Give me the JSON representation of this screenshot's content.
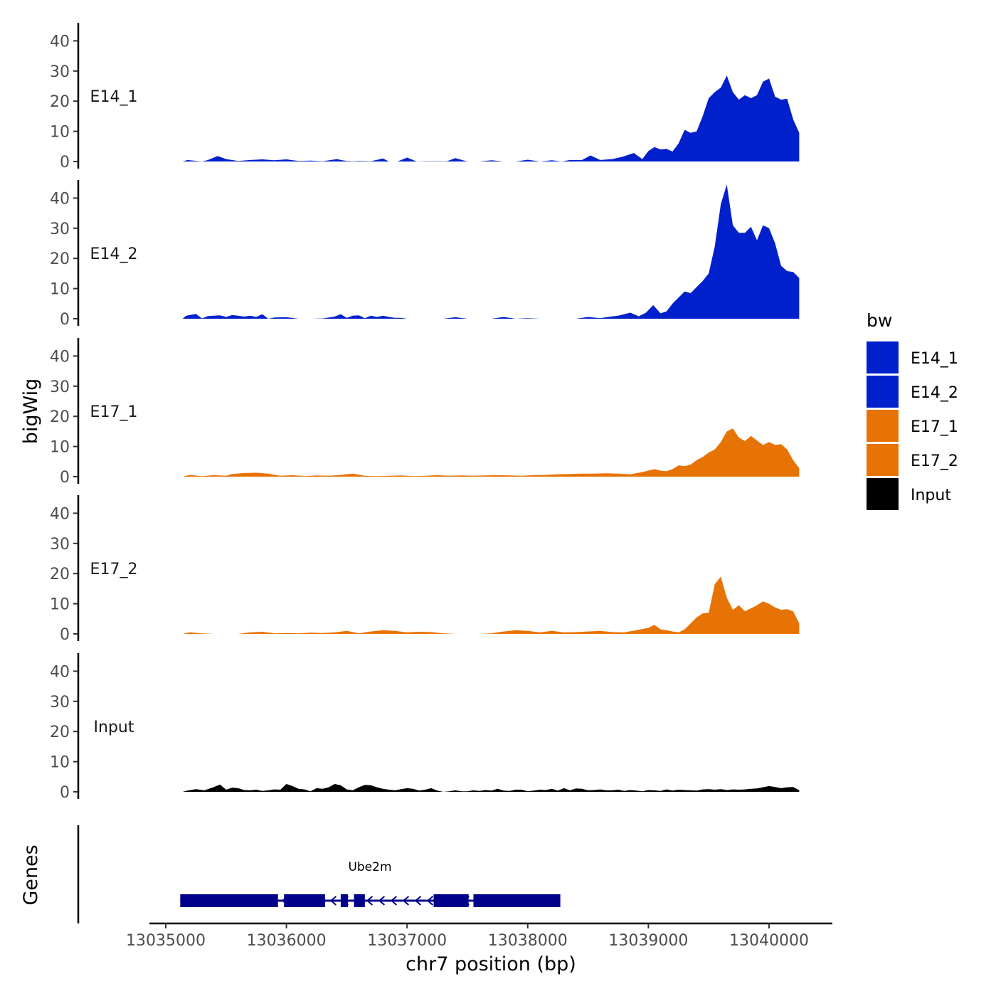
{
  "chart_data": {
    "type": "area",
    "ylabel": "bigWig",
    "xlabel": "chr7 position (bp)",
    "genes_label": "Genes",
    "ylim": [
      0,
      46
    ],
    "y_ticks": [
      0,
      10,
      20,
      30,
      40
    ],
    "xlim": [
      13034870,
      13040750
    ],
    "x_ticks": [
      13035000,
      13036000,
      13037000,
      13038000,
      13039000,
      13040000
    ],
    "x_tick_labels": [
      "13035000",
      "13036000",
      "13037000",
      "13038000",
      "13039000",
      "13040000"
    ],
    "legend": {
      "title": "bw",
      "placement": "right",
      "entries": [
        {
          "label": "E14_1",
          "color": "#0020CC"
        },
        {
          "label": "E14_2",
          "color": "#0020CC"
        },
        {
          "label": "E17_1",
          "color": "#E87305"
        },
        {
          "label": "E17_2",
          "color": "#E87305"
        },
        {
          "label": "Input",
          "color": "#000000"
        }
      ]
    },
    "series": [
      {
        "name": "E14_1",
        "color": "#0020CC",
        "x": [
          13035140,
          13035180,
          13035300,
          13035350,
          13035430,
          13035500,
          13035600,
          13035700,
          13035800,
          13035900,
          13036000,
          13036100,
          13036200,
          13036300,
          13036420,
          13036450,
          13036500,
          13036550,
          13036600,
          13036700,
          13036800,
          13036850,
          13036920,
          13037000,
          13037080,
          13037150,
          13037250,
          13037330,
          13037400,
          13037500,
          13037600,
          13037700,
          13037800,
          13037900,
          13038000,
          13038100,
          13038200,
          13038280,
          13038350,
          13038450,
          13038520,
          13038600,
          13038700,
          13038780,
          13038880,
          13038950,
          13039000,
          13039050,
          13039100,
          13039150,
          13039200,
          13039250,
          13039300,
          13039350,
          13039400,
          13039450,
          13039500,
          13039550,
          13039600,
          13039650,
          13039700,
          13039750,
          13039800,
          13039850,
          13039900,
          13039950,
          13040000,
          13040050,
          13040100,
          13040150,
          13040200,
          13040250
        ],
        "y": [
          0,
          0.5,
          0,
          0.5,
          1.8,
          0.8,
          0.2,
          0.5,
          0.7,
          0.4,
          0.7,
          0.2,
          0.3,
          0.1,
          0.8,
          0.5,
          0.2,
          0.1,
          0.2,
          0.1,
          1,
          0,
          0,
          1.3,
          0,
          0.1,
          0.1,
          0.1,
          1.1,
          0,
          0,
          0.4,
          0,
          0,
          0.6,
          0,
          0.4,
          0,
          0.5,
          0.5,
          2,
          0.5,
          0.8,
          1.5,
          2.8,
          0.8,
          3.5,
          4.8,
          4,
          4.2,
          3.3,
          6,
          10.5,
          9.5,
          10,
          15,
          21,
          23,
          24.5,
          28.5,
          23,
          20.5,
          22,
          21,
          22,
          26.5,
          27.5,
          21.5,
          20.5,
          20.8,
          14,
          9.5
        ]
      },
      {
        "name": "E14_2",
        "color": "#0020CC",
        "x": [
          13035140,
          13035170,
          13035250,
          13035300,
          13035350,
          13035450,
          13035500,
          13035550,
          13035600,
          13035650,
          13035700,
          13035750,
          13035800,
          13035850,
          13035900,
          13036000,
          13036100,
          13036200,
          13036300,
          13036400,
          13036450,
          13036500,
          13036550,
          13036600,
          13036650,
          13036700,
          13036750,
          13036800,
          13036850,
          13036900,
          13036950,
          13037000,
          13037100,
          13037200,
          13037300,
          13037400,
          13037500,
          13037600,
          13037700,
          13037800,
          13037900,
          13038000,
          13038100,
          13038200,
          13038300,
          13038400,
          13038500,
          13038600,
          13038650,
          13038750,
          13038850,
          13038920,
          13038980,
          13039040,
          13039100,
          13039150,
          13039200,
          13039250,
          13039300,
          13039350,
          13039400,
          13039450,
          13039500,
          13039550,
          13039600,
          13039650,
          13039700,
          13039750,
          13039800,
          13039850,
          13039900,
          13039950,
          13040000,
          13040050,
          13040100,
          13040150,
          13040200,
          13040250
        ],
        "y": [
          0,
          1,
          1.6,
          0.1,
          0.9,
          1.1,
          0.6,
          1.2,
          1,
          0.7,
          1,
          0.6,
          1.5,
          0,
          0.4,
          0.5,
          0,
          0,
          0.1,
          0.7,
          1.5,
          0.3,
          1,
          1.1,
          0.2,
          1,
          0.6,
          1,
          0.6,
          0.3,
          0.3,
          0,
          0,
          0,
          0,
          0.5,
          0,
          0,
          0,
          0.6,
          0,
          0.2,
          0,
          0,
          0,
          0,
          0.6,
          0.2,
          0.5,
          1,
          2,
          0.8,
          2,
          4.5,
          1.8,
          2.4,
          5,
          7,
          9,
          8.5,
          10.5,
          12.5,
          15,
          24,
          38,
          44.5,
          31,
          28.5,
          28.5,
          30.5,
          26,
          31,
          30,
          25,
          17.5,
          15.8,
          15.5,
          13.5
        ]
      },
      {
        "name": "E17_1",
        "color": "#E87305",
        "x": [
          13035140,
          13035200,
          13035300,
          13035400,
          13035500,
          13035550,
          13035650,
          13035750,
          13035850,
          13035950,
          13036050,
          13036150,
          13036250,
          13036350,
          13036450,
          13036550,
          13036650,
          13036750,
          13036850,
          13036950,
          13037050,
          13037150,
          13037250,
          13037350,
          13037450,
          13037550,
          13037650,
          13037750,
          13037850,
          13037950,
          13038050,
          13038150,
          13038250,
          13038350,
          13038450,
          13038550,
          13038650,
          13038750,
          13038850,
          13038950,
          13039050,
          13039100,
          13039150,
          13039200,
          13039250,
          13039300,
          13039350,
          13039400,
          13039450,
          13039500,
          13039550,
          13039600,
          13039650,
          13039700,
          13039750,
          13039800,
          13039850,
          13039900,
          13039950,
          13040000,
          13040050,
          13040100,
          13040150,
          13040200,
          13040250
        ],
        "y": [
          0,
          0.6,
          0.2,
          0.5,
          0.3,
          0.9,
          1.2,
          1.3,
          1,
          0.3,
          0.5,
          0.2,
          0.4,
          0.3,
          0.6,
          1,
          0.3,
          0.2,
          0.3,
          0.4,
          0.2,
          0.3,
          0.5,
          0.3,
          0.4,
          0.3,
          0.4,
          0.5,
          0.4,
          0.3,
          0.5,
          0.6,
          0.8,
          0.9,
          1,
          1,
          1.1,
          1,
          0.8,
          1.5,
          2.5,
          2,
          1.8,
          2.5,
          3.7,
          3.5,
          4,
          5.5,
          6.5,
          8,
          9,
          11.5,
          15,
          16,
          13,
          11.8,
          13.5,
          12,
          10.5,
          11.5,
          10.5,
          10.8,
          9,
          5.5,
          2.8
        ]
      },
      {
        "name": "E17_2",
        "color": "#E87305",
        "x": [
          13035140,
          13035200,
          13035300,
          13035400,
          13035500,
          13035600,
          13035700,
          13035800,
          13035900,
          13036000,
          13036100,
          13036200,
          13036300,
          13036400,
          13036500,
          13036600,
          13036700,
          13036800,
          13036900,
          13037000,
          13037100,
          13037200,
          13037300,
          13037400,
          13037500,
          13037600,
          13037700,
          13037800,
          13037900,
          13038000,
          13038100,
          13038200,
          13038300,
          13038400,
          13038500,
          13038600,
          13038700,
          13038800,
          13038900,
          13039000,
          13039050,
          13039100,
          13039150,
          13039200,
          13039250,
          13039300,
          13039350,
          13039400,
          13039450,
          13039500,
          13039550,
          13039600,
          13039650,
          13039700,
          13039750,
          13039800,
          13039850,
          13039900,
          13039950,
          13040000,
          13040050,
          13040100,
          13040150,
          13040200,
          13040250
        ],
        "y": [
          0,
          0.5,
          0.2,
          0,
          0,
          0,
          0.5,
          0.7,
          0.2,
          0.3,
          0.2,
          0.4,
          0.3,
          0.5,
          1,
          0.2,
          0.8,
          1.2,
          1,
          0.5,
          0.7,
          0.6,
          0.2,
          0,
          0,
          0,
          0.2,
          0.8,
          1.2,
          1,
          0.5,
          1,
          0.5,
          0.6,
          0.8,
          1,
          0.6,
          0.5,
          1.2,
          2,
          3,
          1.5,
          1.2,
          0.8,
          0.5,
          1.5,
          3.5,
          5.5,
          6.8,
          7,
          16.5,
          19,
          12,
          8,
          9.5,
          7.5,
          8.5,
          9.5,
          10.8,
          10,
          8.8,
          8,
          8.2,
          7.5,
          3.5
        ]
      },
      {
        "name": "Input",
        "color": "#000000",
        "x": [
          13035140,
          13035180,
          13035250,
          13035320,
          13035400,
          13035450,
          13035500,
          13035550,
          13035600,
          13035650,
          13035700,
          13035750,
          13035800,
          13035850,
          13035900,
          13035950,
          13036000,
          13036050,
          13036100,
          13036150,
          13036200,
          13036250,
          13036300,
          13036350,
          13036400,
          13036450,
          13036500,
          13036550,
          13036600,
          13036650,
          13036700,
          13036750,
          13036800,
          13036850,
          13036900,
          13036950,
          13037000,
          13037050,
          13037100,
          13037150,
          13037200,
          13037250,
          13037300,
          13037350,
          13037400,
          13037450,
          13037500,
          13037550,
          13037600,
          13037650,
          13037700,
          13037750,
          13037800,
          13037850,
          13037900,
          13037950,
          13038000,
          13038050,
          13038100,
          13038150,
          13038200,
          13038250,
          13038300,
          13038350,
          13038400,
          13038450,
          13038500,
          13038550,
          13038600,
          13038650,
          13038700,
          13038750,
          13038800,
          13038850,
          13038900,
          13038950,
          13039000,
          13039050,
          13039100,
          13039150,
          13039200,
          13039250,
          13039300,
          13039350,
          13039400,
          13039450,
          13039500,
          13039550,
          13039600,
          13039650,
          13039700,
          13039750,
          13039800,
          13039850,
          13039900,
          13039950,
          13040000,
          13040050,
          13040100,
          13040150,
          13040200,
          13040250
        ],
        "y": [
          0,
          0.4,
          0.9,
          0.5,
          1.6,
          2.4,
          0.7,
          1.4,
          1.2,
          0.6,
          0.5,
          0.7,
          0.3,
          0.5,
          0.8,
          0.7,
          2.6,
          1.9,
          1,
          0.8,
          0.2,
          1.2,
          1,
          1.5,
          2.6,
          2.2,
          0.8,
          0.5,
          1.5,
          2.3,
          2.2,
          1.5,
          1,
          0.7,
          0.5,
          0.9,
          1.2,
          1,
          0.4,
          0.7,
          1.2,
          0.4,
          0,
          0.2,
          0.5,
          0.2,
          0.2,
          0.5,
          0.3,
          0.6,
          0.4,
          1,
          0.4,
          0.3,
          0.7,
          0.7,
          0.2,
          0.4,
          0.7,
          0.6,
          1,
          0.4,
          1.2,
          0.5,
          1.1,
          1,
          0.5,
          0.6,
          0.8,
          0.5,
          0.5,
          0.7,
          0.3,
          0.6,
          0.4,
          0.2,
          0.6,
          0.5,
          0.3,
          0.8,
          0.4,
          0.7,
          0.6,
          0.5,
          0.4,
          0.8,
          0.9,
          0.7,
          0.9,
          0.6,
          0.8,
          0.7,
          0.8,
          1,
          1.1,
          1.5,
          1.9,
          1.6,
          1.2,
          1.5,
          1.6,
          0.5
        ]
      }
    ],
    "gene": {
      "name": "Ube2m",
      "color": "#00008B",
      "strand": "-",
      "start": 13035120,
      "end": 13038270,
      "exons": [
        [
          13035120,
          13035930
        ],
        [
          13035980,
          13036320
        ],
        [
          13036450,
          13036510
        ],
        [
          13036560,
          13036650
        ],
        [
          13037220,
          13037510
        ],
        [
          13037550,
          13038270
        ]
      ]
    }
  }
}
